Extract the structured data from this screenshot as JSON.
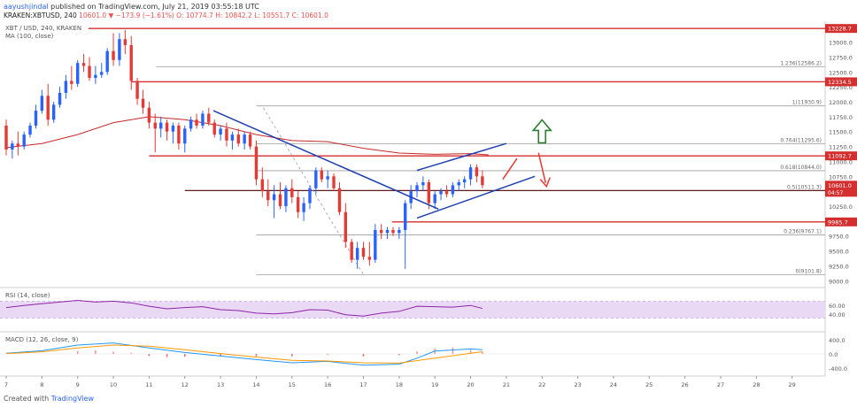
{
  "header": {
    "user": "aayushjindal",
    "published": "published on TradingView.com, July 21, 2019 03:55:18 UTC",
    "symbol": "KRAKEN:XBTUSD, 240",
    "ohlc": "10601.0 ▼ −173.9 (−1.61%) O: 10774.7 H: 10842.2 L: 10551.7 C: 10601.0"
  },
  "legend": {
    "symbol_line": "XBT / USD, 240, KRAKEN",
    "ma_label": "MA (100, close)",
    "rsi_label": "RSI (14, close)",
    "macd_label": "MACD (12, 26, close, 9)"
  },
  "footer": {
    "prefix": "Created with",
    "brand": "TradingView"
  },
  "colors": {
    "up": "#2962ff",
    "down": "#e53935",
    "ma": "#c62828",
    "trend": "#1e40af",
    "resistance": "#d32f2f",
    "fib": "#9e9e9e",
    "arrow_up": "#2e7d32",
    "rsi_band": "#ead9f5",
    "rsi_line": "#8e24aa",
    "macd_line": "#2196f3",
    "signal_line": "#ff9800"
  },
  "chart_data": {
    "type": "candlestick",
    "ylim": [
      8900,
      13350
    ],
    "y_ticks": [
      "13000.0",
      "12750.0",
      "12500.0",
      "12250.0",
      "12000.0",
      "11750.0",
      "11500.0",
      "11250.0",
      "11000.0",
      "10750.0",
      "10500.0",
      "10250.0",
      "10000.0",
      "9750.0",
      "9500.0",
      "9250.0",
      "9000.0"
    ],
    "x_ticks": [
      "7",
      "8",
      "9",
      "10",
      "11",
      "12",
      "13",
      "14",
      "15",
      "16",
      "17",
      "18",
      "19",
      "20",
      "21",
      "22",
      "23",
      "24",
      "25",
      "26",
      "27",
      "28",
      "29"
    ],
    "candles": [
      {
        "x": 7.0,
        "o": 11600,
        "h": 11700,
        "l": 11100,
        "c": 11200
      },
      {
        "x": 7.17,
        "o": 11200,
        "h": 11350,
        "l": 11050,
        "c": 11300
      },
      {
        "x": 7.33,
        "o": 11300,
        "h": 11500,
        "l": 11100,
        "c": 11250
      },
      {
        "x": 7.5,
        "o": 11250,
        "h": 11500,
        "l": 11200,
        "c": 11450
      },
      {
        "x": 7.67,
        "o": 11450,
        "h": 11650,
        "l": 11400,
        "c": 11600
      },
      {
        "x": 7.83,
        "o": 11600,
        "h": 11950,
        "l": 11550,
        "c": 11850
      },
      {
        "x": 8.0,
        "o": 11850,
        "h": 12200,
        "l": 11800,
        "c": 12100
      },
      {
        "x": 8.17,
        "o": 12100,
        "h": 12300,
        "l": 11600,
        "c": 11700
      },
      {
        "x": 8.33,
        "o": 11700,
        "h": 12000,
        "l": 11650,
        "c": 11950
      },
      {
        "x": 8.5,
        "o": 11950,
        "h": 12250,
        "l": 11900,
        "c": 12150
      },
      {
        "x": 8.67,
        "o": 12150,
        "h": 12450,
        "l": 12050,
        "c": 12350
      },
      {
        "x": 8.83,
        "o": 12350,
        "h": 12600,
        "l": 12200,
        "c": 12300
      },
      {
        "x": 9.0,
        "o": 12300,
        "h": 12700,
        "l": 12250,
        "c": 12650
      },
      {
        "x": 9.17,
        "o": 12650,
        "h": 12800,
        "l": 12500,
        "c": 12600
      },
      {
        "x": 9.33,
        "o": 12600,
        "h": 12750,
        "l": 12350,
        "c": 12400
      },
      {
        "x": 9.5,
        "o": 12400,
        "h": 12600,
        "l": 12300,
        "c": 12450
      },
      {
        "x": 9.67,
        "o": 12450,
        "h": 12650,
        "l": 12400,
        "c": 12500
      },
      {
        "x": 9.83,
        "o": 12500,
        "h": 12900,
        "l": 12450,
        "c": 12850
      },
      {
        "x": 10.0,
        "o": 12850,
        "h": 13150,
        "l": 12600,
        "c": 12700
      },
      {
        "x": 10.17,
        "o": 12700,
        "h": 13150,
        "l": 12600,
        "c": 13050
      },
      {
        "x": 10.33,
        "o": 13050,
        "h": 13200,
        "l": 12800,
        "c": 12950
      },
      {
        "x": 10.5,
        "o": 12950,
        "h": 13100,
        "l": 12200,
        "c": 12350
      },
      {
        "x": 10.67,
        "o": 12350,
        "h": 12400,
        "l": 11950,
        "c": 12050
      },
      {
        "x": 10.83,
        "o": 12050,
        "h": 12200,
        "l": 11800,
        "c": 11900
      },
      {
        "x": 11.0,
        "o": 11900,
        "h": 12000,
        "l": 11550,
        "c": 11650
      },
      {
        "x": 11.17,
        "o": 11650,
        "h": 11800,
        "l": 11150,
        "c": 11550
      },
      {
        "x": 11.33,
        "o": 11550,
        "h": 11750,
        "l": 11400,
        "c": 11650
      },
      {
        "x": 11.5,
        "o": 11650,
        "h": 11700,
        "l": 11350,
        "c": 11500
      },
      {
        "x": 11.67,
        "o": 11500,
        "h": 11650,
        "l": 11300,
        "c": 11600
      },
      {
        "x": 11.83,
        "o": 11600,
        "h": 11650,
        "l": 11200,
        "c": 11300
      },
      {
        "x": 12.0,
        "o": 11300,
        "h": 11600,
        "l": 11150,
        "c": 11550
      },
      {
        "x": 12.17,
        "o": 11550,
        "h": 11750,
        "l": 11500,
        "c": 11700
      },
      {
        "x": 12.33,
        "o": 11700,
        "h": 11800,
        "l": 11550,
        "c": 11600
      },
      {
        "x": 12.5,
        "o": 11600,
        "h": 11850,
        "l": 11550,
        "c": 11800
      },
      {
        "x": 12.67,
        "o": 11800,
        "h": 11900,
        "l": 11600,
        "c": 11650
      },
      {
        "x": 12.83,
        "o": 11650,
        "h": 11700,
        "l": 11400,
        "c": 11450
      },
      {
        "x": 13.0,
        "o": 11450,
        "h": 11600,
        "l": 11350,
        "c": 11550
      },
      {
        "x": 13.17,
        "o": 11550,
        "h": 11650,
        "l": 11250,
        "c": 11350
      },
      {
        "x": 13.33,
        "o": 11350,
        "h": 11500,
        "l": 11200,
        "c": 11450
      },
      {
        "x": 13.5,
        "o": 11450,
        "h": 11550,
        "l": 11250,
        "c": 11300
      },
      {
        "x": 13.67,
        "o": 11300,
        "h": 11500,
        "l": 11200,
        "c": 11450
      },
      {
        "x": 13.83,
        "o": 11450,
        "h": 11500,
        "l": 11200,
        "c": 11250
      },
      {
        "x": 14.0,
        "o": 11250,
        "h": 11350,
        "l": 10600,
        "c": 10700
      },
      {
        "x": 14.17,
        "o": 10700,
        "h": 10900,
        "l": 10400,
        "c": 10500
      },
      {
        "x": 14.33,
        "o": 10500,
        "h": 10700,
        "l": 10250,
        "c": 10350
      },
      {
        "x": 14.5,
        "o": 10350,
        "h": 10600,
        "l": 10050,
        "c": 10450
      },
      {
        "x": 14.67,
        "o": 10450,
        "h": 10650,
        "l": 10200,
        "c": 10250
      },
      {
        "x": 14.83,
        "o": 10250,
        "h": 10600,
        "l": 10150,
        "c": 10550
      },
      {
        "x": 15.0,
        "o": 10550,
        "h": 10700,
        "l": 10300,
        "c": 10400
      },
      {
        "x": 15.17,
        "o": 10400,
        "h": 10500,
        "l": 10050,
        "c": 10150
      },
      {
        "x": 15.33,
        "o": 10150,
        "h": 10400,
        "l": 10000,
        "c": 10300
      },
      {
        "x": 15.5,
        "o": 10300,
        "h": 10600,
        "l": 10200,
        "c": 10550
      },
      {
        "x": 15.67,
        "o": 10550,
        "h": 10900,
        "l": 10450,
        "c": 10850
      },
      {
        "x": 15.83,
        "o": 10850,
        "h": 10900,
        "l": 10650,
        "c": 10700
      },
      {
        "x": 16.0,
        "o": 10700,
        "h": 10850,
        "l": 10550,
        "c": 10750
      },
      {
        "x": 16.17,
        "o": 10750,
        "h": 10800,
        "l": 10500,
        "c": 10550
      },
      {
        "x": 16.33,
        "o": 10550,
        "h": 10650,
        "l": 10100,
        "c": 10150
      },
      {
        "x": 16.5,
        "o": 10150,
        "h": 10300,
        "l": 9550,
        "c": 9650
      },
      {
        "x": 16.67,
        "o": 9650,
        "h": 9700,
        "l": 9300,
        "c": 9350
      },
      {
        "x": 16.83,
        "o": 9350,
        "h": 9650,
        "l": 9200,
        "c": 9550
      },
      {
        "x": 17.0,
        "o": 9550,
        "h": 9650,
        "l": 9350,
        "c": 9400
      },
      {
        "x": 17.17,
        "o": 9400,
        "h": 9650,
        "l": 9250,
        "c": 9350
      },
      {
        "x": 17.33,
        "o": 9350,
        "h": 9950,
        "l": 9300,
        "c": 9850
      },
      {
        "x": 17.5,
        "o": 9850,
        "h": 9950,
        "l": 9700,
        "c": 9800
      },
      {
        "x": 17.67,
        "o": 9800,
        "h": 9900,
        "l": 9700,
        "c": 9850
      },
      {
        "x": 17.83,
        "o": 9850,
        "h": 9900,
        "l": 9750,
        "c": 9800
      },
      {
        "x": 18.0,
        "o": 9800,
        "h": 9900,
        "l": 9700,
        "c": 9850
      },
      {
        "x": 18.17,
        "o": 9850,
        "h": 10350,
        "l": 9200,
        "c": 10300
      },
      {
        "x": 18.33,
        "o": 10300,
        "h": 10600,
        "l": 10200,
        "c": 10500
      },
      {
        "x": 18.5,
        "o": 10500,
        "h": 10650,
        "l": 10400,
        "c": 10600
      },
      {
        "x": 18.67,
        "o": 10600,
        "h": 10750,
        "l": 10500,
        "c": 10650
      },
      {
        "x": 18.83,
        "o": 10650,
        "h": 10700,
        "l": 10200,
        "c": 10300
      },
      {
        "x": 19.0,
        "o": 10300,
        "h": 10500,
        "l": 10200,
        "c": 10450
      },
      {
        "x": 19.17,
        "o": 10450,
        "h": 10550,
        "l": 10350,
        "c": 10500
      },
      {
        "x": 19.33,
        "o": 10500,
        "h": 10600,
        "l": 10400,
        "c": 10450
      },
      {
        "x": 19.5,
        "o": 10450,
        "h": 10650,
        "l": 10400,
        "c": 10600
      },
      {
        "x": 19.67,
        "o": 10600,
        "h": 10700,
        "l": 10500,
        "c": 10650
      },
      {
        "x": 19.83,
        "o": 10650,
        "h": 10750,
        "l": 10550,
        "c": 10700
      },
      {
        "x": 20.0,
        "o": 10700,
        "h": 10950,
        "l": 10600,
        "c": 10900
      },
      {
        "x": 20.17,
        "o": 10900,
        "h": 10950,
        "l": 10650,
        "c": 10750
      },
      {
        "x": 20.33,
        "o": 10750,
        "h": 10850,
        "l": 10550,
        "c": 10601
      }
    ],
    "ma_100": [
      [
        7,
        11230
      ],
      [
        8,
        11300
      ],
      [
        9,
        11450
      ],
      [
        10,
        11650
      ],
      [
        11,
        11750
      ],
      [
        12,
        11700
      ],
      [
        13,
        11600
      ],
      [
        14,
        11450
      ],
      [
        15,
        11350
      ],
      [
        16,
        11330
      ],
      [
        17,
        11220
      ],
      [
        18,
        11140
      ],
      [
        19,
        11120
      ],
      [
        20,
        11130
      ],
      [
        20.5,
        11110
      ]
    ],
    "levels": [
      {
        "name": "resistance",
        "value": 13228.7,
        "label": "13228.7",
        "x_from": 9.3
      },
      {
        "name": "fib-1.236",
        "value": 12586.2,
        "label": "1.236(12586.2)",
        "x_from": 11.2
      },
      {
        "name": "resistance",
        "value": 12334.5,
        "label": "12334.5",
        "x_from": 10.5
      },
      {
        "name": "fib-1",
        "value": 11930.9,
        "label": "1(11930.9)",
        "x_from": 14.0
      },
      {
        "name": "fib-0.764",
        "value": 11295.6,
        "label": "0.764(11295.6)",
        "x_from": 14.0
      },
      {
        "name": "resistance",
        "value": 11092.7,
        "label": "11092.7",
        "x_from": 11.0
      },
      {
        "name": "fib-0.618",
        "value": 10844.0,
        "label": "0.618(10844.0)",
        "x_from": 14.0
      },
      {
        "name": "fib-0.5",
        "value": 10511.3,
        "label": "0.5(10511.3)",
        "x_from": 14.0
      },
      {
        "name": "support",
        "value": 10511.3,
        "label": "",
        "x_from": 12.0
      },
      {
        "name": "support",
        "value": 9985.7,
        "label": "9985.7",
        "x_from": 17.8
      },
      {
        "name": "fib-0.236",
        "value": 9767.1,
        "label": "0.236(9767.1)",
        "x_from": 14.0
      },
      {
        "name": "fib-0",
        "value": 9101.8,
        "label": "0(9101.8)",
        "x_from": 14.0
      }
    ],
    "last_price": {
      "value": 10601.0,
      "label": "10601.0",
      "countdown": "04:57"
    },
    "trendlines": [
      {
        "name": "bearish-trend-line",
        "from": [
          12.8,
          11850
        ],
        "to": [
          19.1,
          10200
        ]
      },
      {
        "name": "channel-upper",
        "from": [
          18.5,
          10850
        ],
        "to": [
          21.0,
          11300
        ]
      },
      {
        "name": "channel-lower",
        "from": [
          18.5,
          10050
        ],
        "to": [
          21.8,
          10750
        ]
      }
    ],
    "arrows": [
      {
        "name": "bullish-arrow",
        "direction": "up",
        "at": [
          22.0,
          11400
        ]
      },
      {
        "name": "bearish-arrow",
        "direction": "down",
        "at": [
          22.0,
          10700
        ]
      }
    ],
    "rsi": {
      "ylim": [
        0,
        100
      ],
      "ticks": [
        "60.00",
        "40.00"
      ],
      "levels": [
        70,
        30
      ],
      "values": [
        [
          7,
          55
        ],
        [
          7.5,
          60
        ],
        [
          8,
          64
        ],
        [
          8.5,
          68
        ],
        [
          9,
          72
        ],
        [
          9.5,
          68
        ],
        [
          10,
          70
        ],
        [
          10.5,
          66
        ],
        [
          11,
          58
        ],
        [
          11.5,
          52
        ],
        [
          12,
          55
        ],
        [
          12.5,
          57
        ],
        [
          13,
          50
        ],
        [
          13.5,
          48
        ],
        [
          14,
          42
        ],
        [
          14.5,
          40
        ],
        [
          15,
          43
        ],
        [
          15.5,
          50
        ],
        [
          16,
          49
        ],
        [
          16.5,
          38
        ],
        [
          17,
          35
        ],
        [
          17.5,
          42
        ],
        [
          18,
          46
        ],
        [
          18.5,
          58
        ],
        [
          19,
          57
        ],
        [
          19.5,
          56
        ],
        [
          20,
          60
        ],
        [
          20.33,
          53
        ]
      ]
    },
    "macd": {
      "ylim": [
        -600,
        600
      ],
      "ticks": [
        "400.0",
        "0.0",
        "-400.0"
      ],
      "macd_line": [
        [
          7,
          20
        ],
        [
          8,
          90
        ],
        [
          9,
          250
        ],
        [
          10,
          310
        ],
        [
          11,
          170
        ],
        [
          12,
          40
        ],
        [
          13,
          -60
        ],
        [
          14,
          -160
        ],
        [
          15,
          -250
        ],
        [
          16,
          -210
        ],
        [
          17,
          -320
        ],
        [
          18,
          -290
        ],
        [
          18.5,
          -120
        ],
        [
          19,
          80
        ],
        [
          20,
          140
        ],
        [
          20.33,
          120
        ]
      ],
      "signal_line": [
        [
          7,
          10
        ],
        [
          8,
          60
        ],
        [
          9,
          170
        ],
        [
          10,
          250
        ],
        [
          11,
          220
        ],
        [
          12,
          120
        ],
        [
          13,
          10
        ],
        [
          14,
          -90
        ],
        [
          15,
          -180
        ],
        [
          16,
          -200
        ],
        [
          17,
          -250
        ],
        [
          18,
          -260
        ],
        [
          19,
          -120
        ],
        [
          20,
          20
        ],
        [
          20.33,
          60
        ]
      ],
      "histogram": [
        [
          9,
          80
        ],
        [
          9.5,
          100
        ],
        [
          10,
          60
        ],
        [
          10.5,
          30
        ],
        [
          11,
          -60
        ],
        [
          11.5,
          -90
        ],
        [
          12,
          -80
        ],
        [
          13,
          -70
        ],
        [
          14,
          -70
        ],
        [
          15,
          -70
        ],
        [
          16,
          -20
        ],
        [
          17,
          -70
        ],
        [
          18,
          -30
        ],
        [
          18.5,
          70
        ],
        [
          19,
          150
        ],
        [
          19.5,
          180
        ],
        [
          20,
          120
        ],
        [
          20.33,
          60
        ]
      ]
    }
  }
}
